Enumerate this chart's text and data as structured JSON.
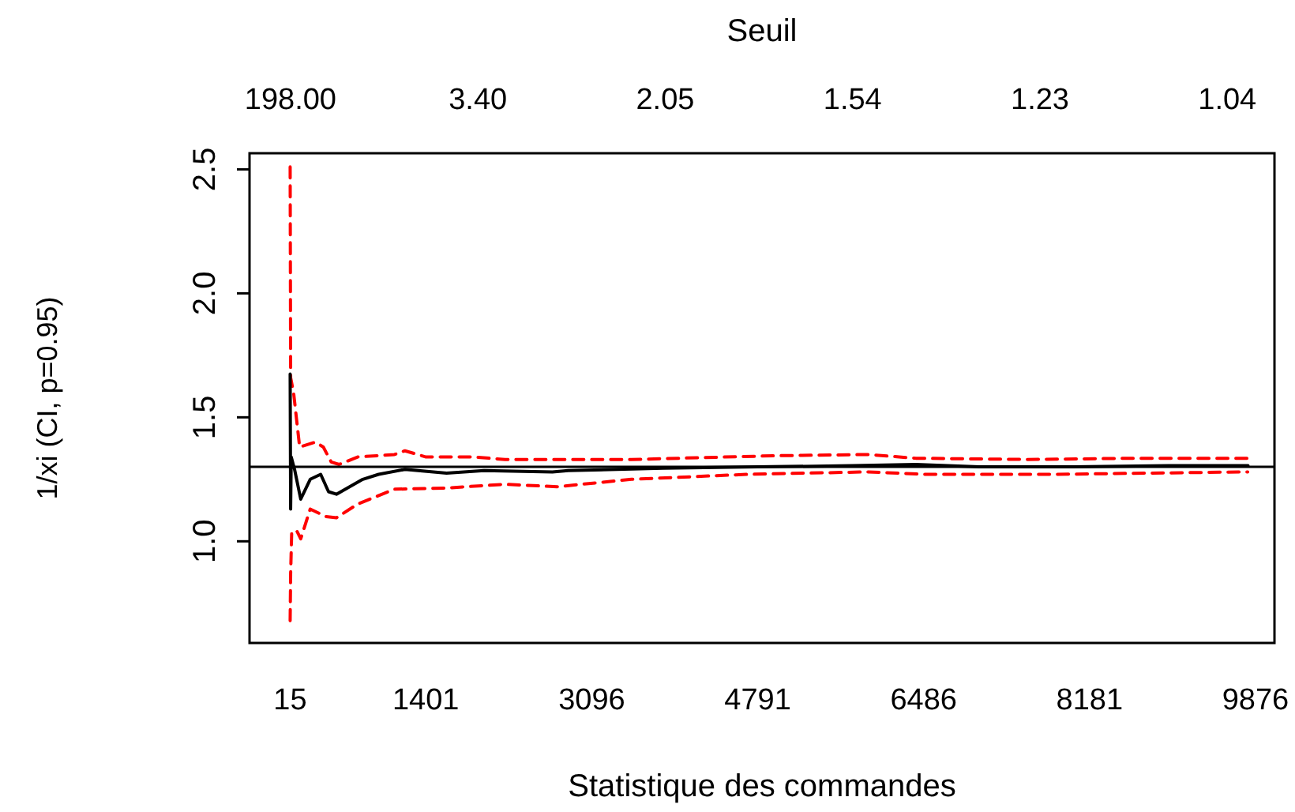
{
  "chart_data": {
    "type": "line",
    "xlabel": "Statistique des commandes",
    "ylabel": "1/xi (CI, p=0.95)",
    "x2label": "Seuil",
    "xlim": [
      -400,
      10070
    ],
    "ylim": [
      0.59,
      2.565
    ],
    "xticks": [
      15,
      1401,
      3096,
      4791,
      6486,
      8181,
      9876
    ],
    "annotations": [
      "198.00",
      "3.40",
      "2.05",
      "1.54",
      "1.23",
      "1.04"
    ],
    "yticks": [
      {
        "value": 1.0,
        "label": "1.0"
      },
      {
        "value": 1.5,
        "label": "1.5"
      },
      {
        "value": 2.0,
        "label": "2.0"
      },
      {
        "value": 2.5,
        "label": "2.5"
      }
    ],
    "grid": false,
    "marker": "none",
    "ref_lines": [
      {
        "axis": "y",
        "value": 1.3,
        "color": "#000000"
      }
    ],
    "series": [
      {
        "color": "#ff0000",
        "line_style": "dashed",
        "x": [
          15,
          20,
          50,
          112,
          273,
          354,
          434,
          515,
          704,
          1080,
          1188,
          1403,
          1887,
          2210,
          2694,
          3501,
          4954,
          5922,
          6406,
          7536,
          8666,
          9796
        ],
        "values": [
          2.51,
          1.66,
          1.6,
          1.38,
          1.4,
          1.38,
          1.32,
          1.31,
          1.34,
          1.35,
          1.365,
          1.34,
          1.34,
          1.33,
          1.33,
          1.33,
          1.345,
          1.35,
          1.335,
          1.33,
          1.335,
          1.335
        ]
      },
      {
        "color": "#ff0000",
        "line_style": "dashed",
        "x": [
          15,
          20,
          31,
          85,
          123,
          220,
          380,
          488,
          704,
          1080,
          1613,
          2210,
          2743,
          3501,
          4680,
          5922,
          6520,
          7811,
          9796
        ],
        "values": [
          0.68,
          0.87,
          1.04,
          1.04,
          1.01,
          1.13,
          1.1,
          1.095,
          1.15,
          1.21,
          1.215,
          1.23,
          1.22,
          1.25,
          1.27,
          1.28,
          1.27,
          1.27,
          1.28
        ]
      },
      {
        "color": "#000000",
        "line_style": "solid",
        "x": [
          15,
          20,
          26,
          60,
          123,
          220,
          327,
          407,
          488,
          757,
          919,
          1188,
          1613,
          1996,
          2694,
          2856,
          3824,
          4790,
          5760,
          6406,
          7052,
          8020,
          8990,
          9800
        ],
        "values": [
          1.675,
          1.13,
          1.34,
          1.29,
          1.17,
          1.25,
          1.27,
          1.2,
          1.19,
          1.25,
          1.27,
          1.29,
          1.275,
          1.285,
          1.28,
          1.285,
          1.295,
          1.3,
          1.305,
          1.31,
          1.3,
          1.3,
          1.305,
          1.305
        ]
      }
    ]
  }
}
